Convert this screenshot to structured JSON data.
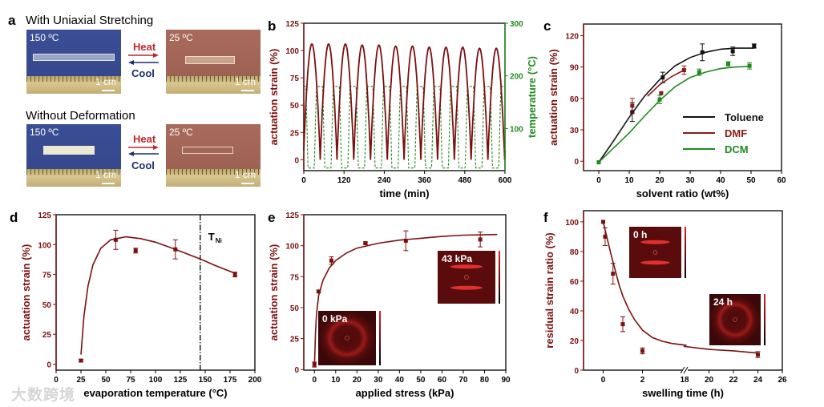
{
  "panel_labels": [
    "a",
    "b",
    "c",
    "d",
    "e",
    "f"
  ],
  "panel_a": {
    "row1_title": "With Uniaxial Stretching",
    "row2_title": "Without Deformation",
    "hot_temp": "150 ºC",
    "cold_temp": "25 ºC",
    "scale": "1 cm",
    "heat_label": "Heat",
    "cool_label": "Cool",
    "heat_color": "#c0262c",
    "cool_color": "#1a2f6b"
  },
  "watermark": "大数跨境",
  "chart_data": [
    {
      "id": "b",
      "type": "line",
      "xlabel": "time (min)",
      "ylabel": "actuation strain (%)",
      "ylabel_right": "temperature (°C)",
      "xlim": [
        0,
        600
      ],
      "ylim": [
        -10,
        125
      ],
      "ylim_right": [
        20,
        300
      ],
      "xticks": [
        0,
        120,
        240,
        360,
        480,
        600
      ],
      "yticks": [
        0,
        25,
        50,
        75,
        100,
        125
      ],
      "yticks_right": [
        100,
        200,
        300
      ],
      "series": [
        {
          "name": "actuation strain",
          "color": "#7b1010",
          "cycle_period_min": 50,
          "first_peak_min": 24,
          "peaks": [
            106,
            106,
            106,
            105,
            105,
            104,
            104,
            103,
            103,
            103,
            102,
            102
          ],
          "min": 0
        },
        {
          "name": "temperature",
          "color": "#1f8a1f",
          "style": "dashed",
          "cycle_period_min": 50,
          "high_center_min": 47,
          "low": 25,
          "high": 180
        }
      ]
    },
    {
      "id": "c",
      "type": "scatter",
      "xlabel": "solvent ratio (wt%)",
      "ylabel": "actuation strain (%)",
      "xlim": [
        -5,
        60
      ],
      "ylim": [
        -9,
        131
      ],
      "xticks": [
        0,
        10,
        20,
        30,
        40,
        50,
        60
      ],
      "yticks": [
        0,
        30,
        60,
        90,
        120
      ],
      "legend": "bottom-right",
      "series": [
        {
          "name": "Toluene",
          "color": "#111111",
          "points": [
            [
              0,
              -1,
              0
            ],
            [
              11,
              47,
              9
            ],
            [
              21,
              80,
              5
            ],
            [
              34,
              104,
              8
            ],
            [
              44,
              105,
              4
            ],
            [
              51,
              110,
              2
            ]
          ],
          "fit": [
            [
              0,
              -1
            ],
            [
              5,
              20
            ],
            [
              10,
              42
            ],
            [
              15,
              62
            ],
            [
              20,
              78
            ],
            [
              25,
              91
            ],
            [
              30,
              99
            ],
            [
              35,
              104
            ],
            [
              40,
              107
            ],
            [
              45,
              108
            ],
            [
              51,
              108
            ]
          ]
        },
        {
          "name": "DMF",
          "color": "#8b1a1a",
          "points": [
            [
              11,
              53,
              7
            ],
            [
              20.5,
              65,
              0
            ],
            [
              28,
              87,
              4
            ]
          ],
          "fit": [
            [
              16,
              62
            ],
            [
              20,
              73
            ],
            [
              24,
              81
            ],
            [
              28,
              87
            ]
          ]
        },
        {
          "name": "DCM",
          "color": "#1f8a1f",
          "points": [
            [
              0,
              -1,
              0
            ],
            [
              20,
              59,
              4
            ],
            [
              33,
              85,
              3
            ],
            [
              42.5,
              93,
              2
            ],
            [
              49.5,
              91,
              3
            ]
          ],
          "fit": [
            [
              0,
              -1
            ],
            [
              5,
              13
            ],
            [
              10,
              27
            ],
            [
              15,
              43
            ],
            [
              20,
              58
            ],
            [
              25,
              71
            ],
            [
              30,
              80
            ],
            [
              35,
              85
            ],
            [
              40,
              88.5
            ],
            [
              45,
              90
            ],
            [
              50,
              90.5
            ]
          ]
        }
      ]
    },
    {
      "id": "d",
      "type": "scatter",
      "xlabel": "evaporation temperature (°C)",
      "ylabel": "actuation strain (%)",
      "xlim": [
        0,
        200
      ],
      "ylim": [
        -5,
        125
      ],
      "xticks": [
        0,
        25,
        50,
        75,
        100,
        125,
        150,
        175,
        200
      ],
      "yticks": [
        0,
        25,
        50,
        75,
        100,
        125
      ],
      "annotation": {
        "text": "T",
        "subscript": "Ni",
        "x": 145
      },
      "series": [
        {
          "name": "strain",
          "color": "#7b1010",
          "points": [
            [
              25,
              3,
              1
            ],
            [
              60,
              104,
              8
            ],
            [
              80,
              95,
              2
            ],
            [
              120,
              96,
              8
            ],
            [
              180,
              75,
              2
            ]
          ],
          "fit": [
            [
              25,
              8
            ],
            [
              28,
              40
            ],
            [
              32,
              65
            ],
            [
              37,
              83
            ],
            [
              45,
              97
            ],
            [
              55,
              104
            ],
            [
              70,
              106.5
            ],
            [
              85,
              105
            ],
            [
              100,
              102
            ],
            [
              120,
              96
            ],
            [
              145,
              88
            ],
            [
              160,
              82.5
            ],
            [
              180,
              76
            ]
          ]
        }
      ]
    },
    {
      "id": "e",
      "type": "scatter",
      "xlabel": "applied stress (kPa)",
      "ylabel": "actuation strain (%)",
      "xlim": [
        -5,
        90
      ],
      "ylim": [
        -0.5,
        125
      ],
      "xticks": [
        0,
        10,
        20,
        30,
        40,
        50,
        60,
        70,
        80,
        90
      ],
      "yticks": [
        0,
        25,
        50,
        75,
        100,
        125
      ],
      "insets": [
        "0 kPa",
        "43 kPa"
      ],
      "series": [
        {
          "name": "strain",
          "color": "#7b1010",
          "points": [
            [
              0,
              4,
              2
            ],
            [
              2,
              63,
              1
            ],
            [
              8,
              88,
              3
            ],
            [
              24,
              102,
              1
            ],
            [
              43,
              104,
              8
            ],
            [
              78,
              105,
              6
            ]
          ],
          "fit": [
            [
              0,
              2
            ],
            [
              0.5,
              30
            ],
            [
              1,
              45
            ],
            [
              2,
              60
            ],
            [
              4,
              72
            ],
            [
              7,
              82
            ],
            [
              10,
              88
            ],
            [
              15,
              94
            ],
            [
              20,
              98
            ],
            [
              30,
              102
            ],
            [
              40,
              104.5
            ],
            [
              50,
              106
            ],
            [
              60,
              107.5
            ],
            [
              70,
              108.5
            ],
            [
              86,
              109
            ]
          ]
        }
      ]
    },
    {
      "id": "f",
      "type": "scatter",
      "xlabel": "swelling time (h)",
      "ylabel": "residual strain ratio (%)",
      "xlim": [
        -1,
        26
      ],
      "x_break": [
        4.2,
        18
      ],
      "ylim": [
        0,
        107.5
      ],
      "xticks": [
        0,
        2,
        18,
        20,
        22,
        24,
        26
      ],
      "yticks": [
        0,
        20,
        40,
        60,
        80,
        100
      ],
      "insets": [
        "0 h",
        "24 h"
      ],
      "series": [
        {
          "name": "residual strain",
          "color": "#7b1010",
          "points": [
            [
              0,
              100,
              0
            ],
            [
              0.1,
              90,
              6
            ],
            [
              0.5,
              65,
              7
            ],
            [
              1,
              31,
              5
            ],
            [
              2,
              13,
              2
            ],
            [
              24,
              10.5,
              2
            ]
          ],
          "fit": [
            [
              0,
              100
            ],
            [
              0.2,
              89
            ],
            [
              0.4,
              78
            ],
            [
              0.6,
              68
            ],
            [
              0.8,
              58
            ],
            [
              1,
              50
            ],
            [
              1.3,
              41
            ],
            [
              1.6,
              34
            ],
            [
              2,
              27
            ],
            [
              2.5,
              22
            ],
            [
              3,
              19.5
            ],
            [
              3.5,
              18
            ],
            [
              4.2,
              16.8
            ],
            [
              18,
              16
            ],
            [
              20,
              14
            ],
            [
              22,
              13
            ],
            [
              24,
              11.5
            ]
          ]
        }
      ]
    }
  ]
}
